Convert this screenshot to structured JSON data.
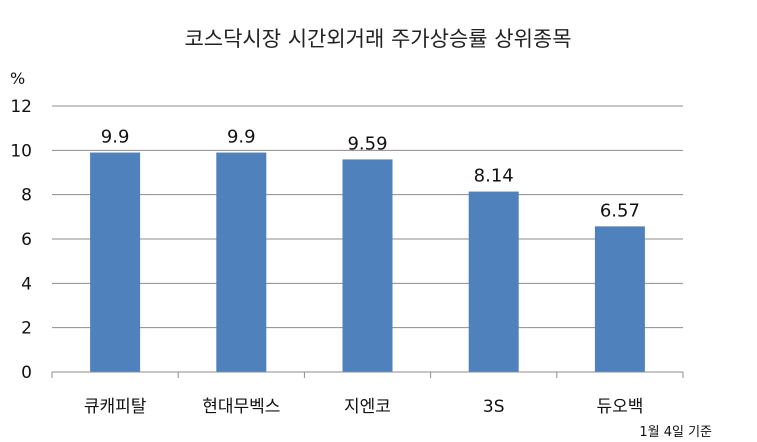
{
  "chart_data": {
    "type": "bar",
    "title": "코스닥시장 시간외거래  주가상승률 상위종목",
    "ylabel": "%",
    "categories": [
      "큐캐피탈",
      "현대무벡스",
      "지엔코",
      "3S",
      "듀오백"
    ],
    "values": [
      9.9,
      9.9,
      9.59,
      8.14,
      6.57
    ],
    "data_labels": [
      "9.9",
      "9.9",
      "9.59",
      "8.14",
      "6.57"
    ],
    "ylim": [
      0,
      12
    ],
    "yticks": [
      0,
      2,
      4,
      6,
      8,
      10,
      12
    ],
    "grid": true,
    "legend": "none",
    "bar_color": "#4F81BD",
    "footnote": "1월 4일 기준"
  }
}
